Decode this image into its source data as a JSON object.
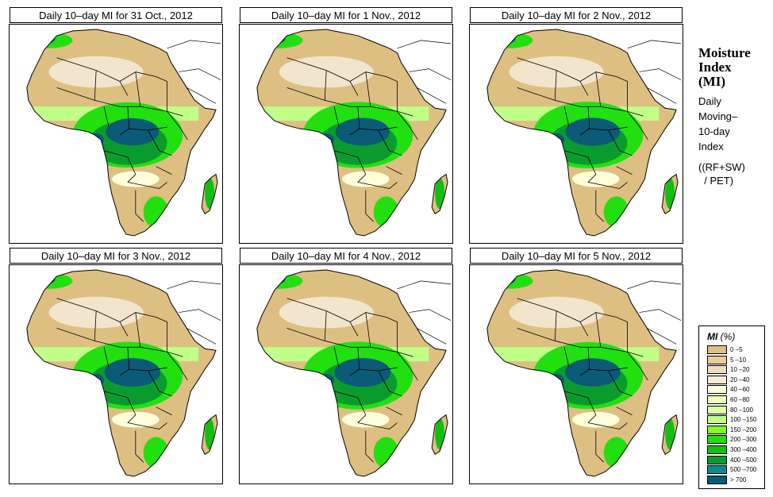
{
  "panels": [
    {
      "title": "Daily 10–day MI for  31 Oct., 2012",
      "wetness": 0.55
    },
    {
      "title": "Daily 10–day MI for  1 Nov., 2012",
      "wetness": 0.6
    },
    {
      "title": "Daily 10–day MI for  2 Nov., 2012",
      "wetness": 0.62
    },
    {
      "title": "Daily 10–day MI for  3 Nov., 2012",
      "wetness": 0.68
    },
    {
      "title": "Daily 10–day MI for  4 Nov., 2012",
      "wetness": 0.7
    },
    {
      "title": "Daily 10–day MI for  5 Nov., 2012",
      "wetness": 0.65
    }
  ],
  "sidebar": {
    "heading_lines": [
      "Moisture",
      "Index",
      "(MI)"
    ],
    "sub_lines": [
      "Daily",
      "Moving–",
      "10-day",
      "Index"
    ],
    "formula_lines": [
      "((RF+SW)",
      "  / PET)"
    ]
  },
  "legend": {
    "title_prefix": "MI",
    "title_suffix": " (%)",
    "items": [
      {
        "label": "0 –5",
        "color": "#DEBF82"
      },
      {
        "label": "5 –10",
        "color": "#E8CC9A"
      },
      {
        "label": "10 –20",
        "color": "#F0DBBB"
      },
      {
        "label": "20 –40",
        "color": "#F8EBD3"
      },
      {
        "label": "40 –60",
        "color": "#FFFFDC"
      },
      {
        "label": "60 –80",
        "color": "#F0FFC0"
      },
      {
        "label": "80 –100",
        "color": "#DCFFAA"
      },
      {
        "label": "100 –150",
        "color": "#C0FF88"
      },
      {
        "label": "150 –200",
        "color": "#80FF20"
      },
      {
        "label": "200 –300",
        "color": "#22E010"
      },
      {
        "label": "300 –400",
        "color": "#12BE12"
      },
      {
        "label": "400 –500",
        "color": "#0A9B2E"
      },
      {
        "label": "500 –700",
        "color": "#0A8C8C"
      },
      {
        "label": "> 700",
        "color": "#0A5A78"
      }
    ]
  }
}
